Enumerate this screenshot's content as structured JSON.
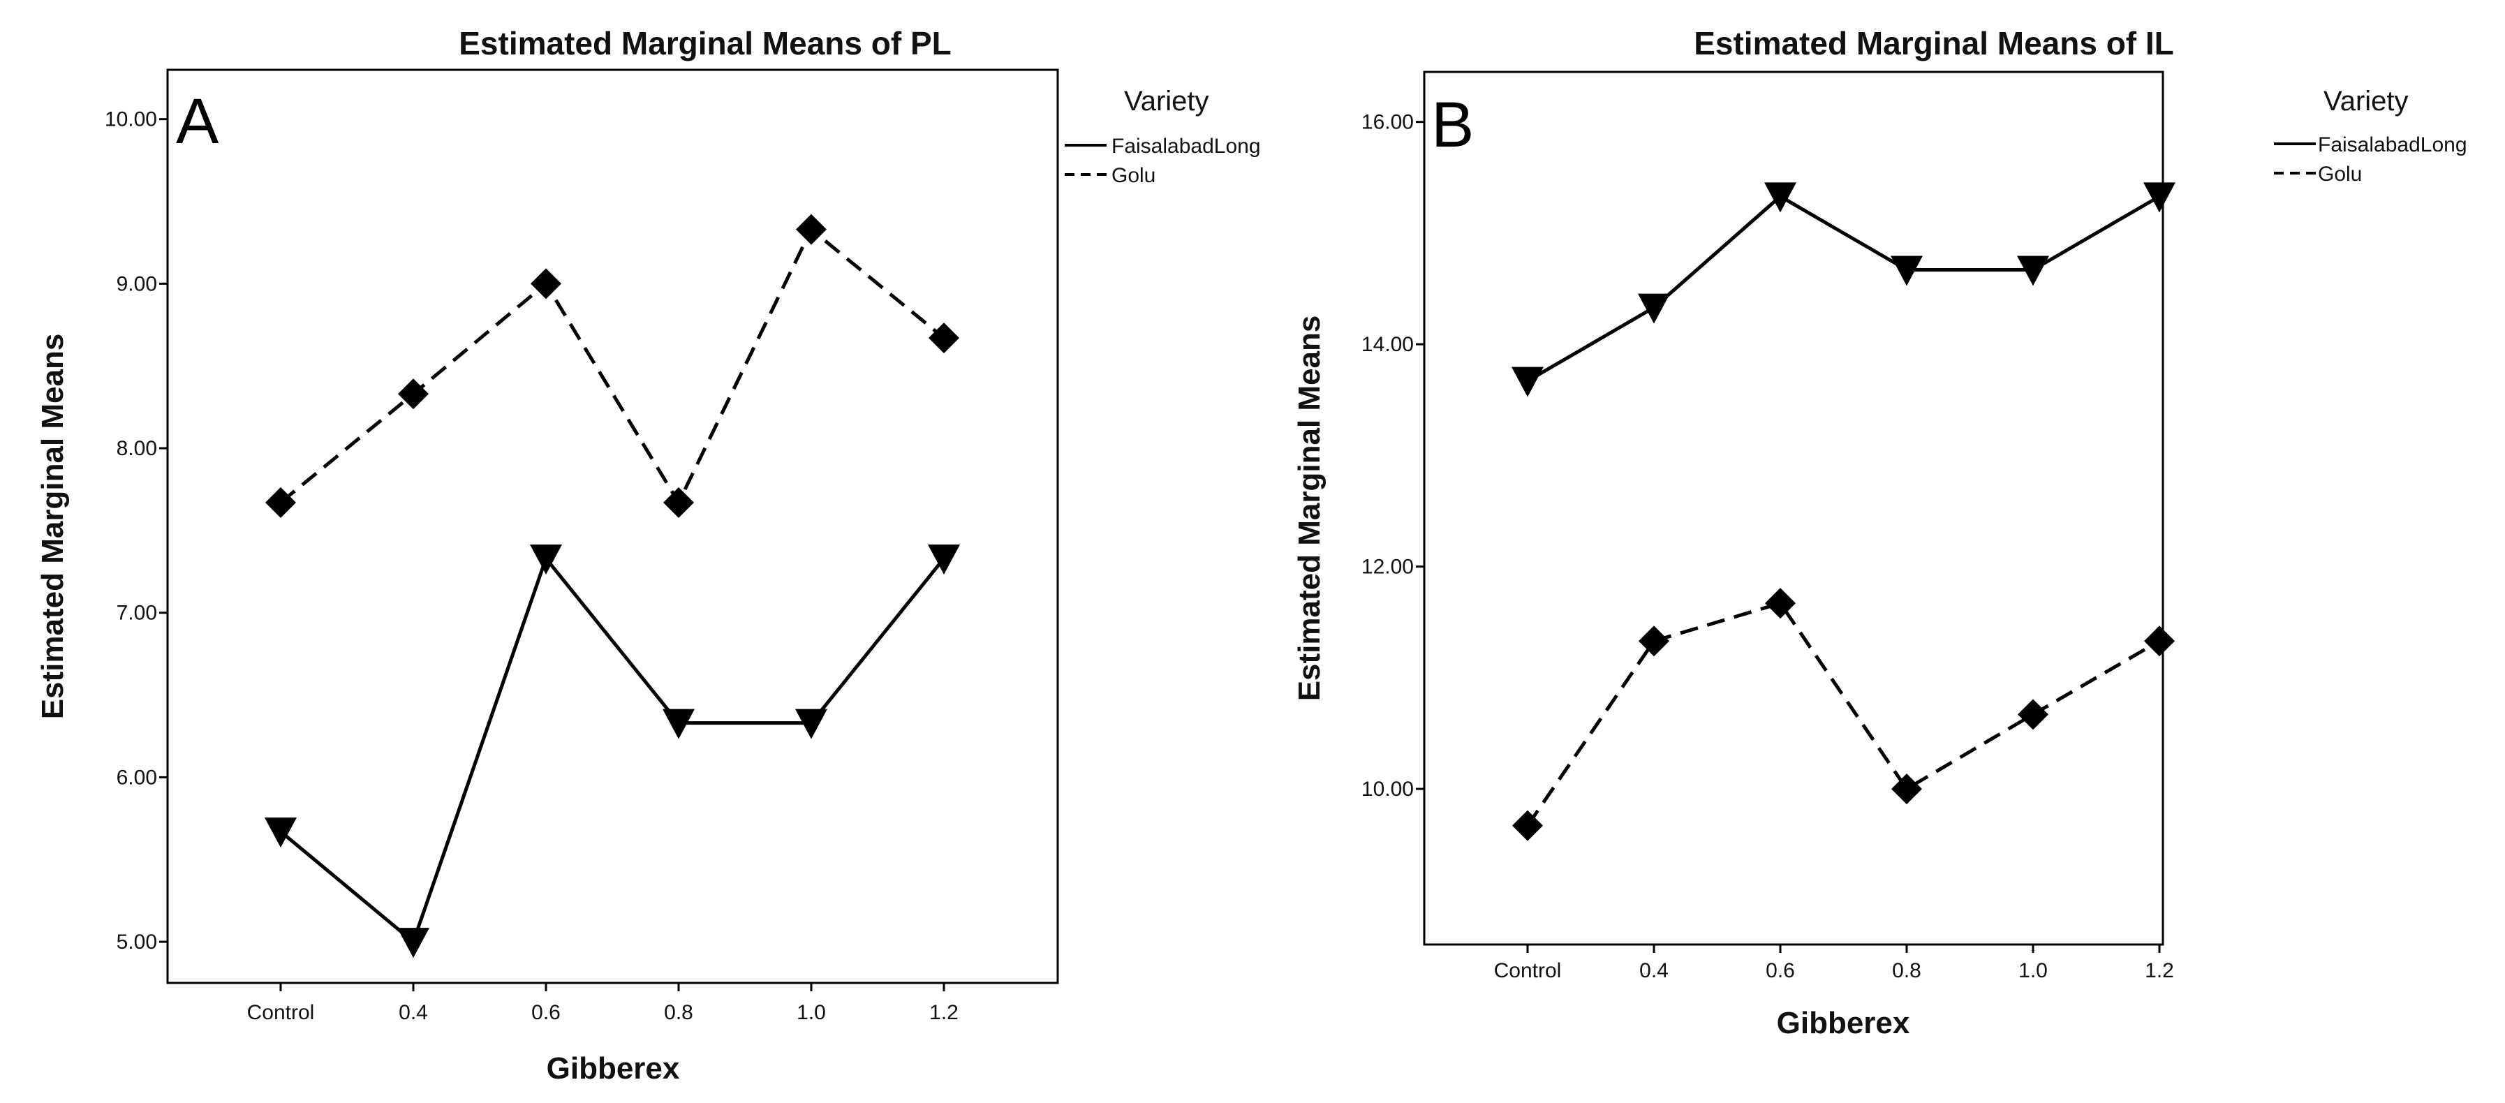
{
  "chart_data": [
    {
      "type": "line",
      "panel_letter": "A",
      "title": "Estimated Marginal Means of PL",
      "xlabel": "Gibberex",
      "ylabel": "Estimated Marginal Means",
      "categories": [
        "Control",
        "0.4",
        "0.6",
        "0.8",
        "1.0",
        "1.2"
      ],
      "ylim": [
        4.75,
        10.3
      ],
      "yticks": [
        "5.00",
        "6.00",
        "7.00",
        "8.00",
        "9.00",
        "10.00"
      ],
      "ytick_values": [
        5,
        6,
        7,
        8,
        9,
        10
      ],
      "legend_title": "Variety",
      "series": [
        {
          "name": "FaisalabadLong",
          "style": "solid",
          "marker": "triangle-down",
          "values": [
            5.67,
            5.0,
            7.33,
            6.33,
            6.33,
            7.33
          ]
        },
        {
          "name": "Golu",
          "style": "dashed",
          "marker": "diamond",
          "values": [
            7.67,
            8.33,
            9.0,
            7.67,
            9.33,
            8.67
          ]
        }
      ]
    },
    {
      "type": "line",
      "panel_letter": "B",
      "title": "Estimated Marginal Means of IL",
      "xlabel": "Gibberex",
      "ylabel": "Estimated Marginal Means",
      "categories": [
        "Control",
        "0.4",
        "0.6",
        "0.8",
        "1.0",
        "1.2"
      ],
      "ylim": [
        8.6,
        16.45
      ],
      "yticks": [
        "10.00",
        "12.00",
        "14.00",
        "16.00"
      ],
      "ytick_values": [
        10,
        12,
        14,
        16
      ],
      "legend_title": "Variety",
      "series": [
        {
          "name": "FaisalabadLong",
          "style": "solid",
          "marker": "triangle-down",
          "values": [
            13.67,
            14.33,
            15.33,
            14.67,
            14.67,
            15.33
          ]
        },
        {
          "name": "Golu",
          "style": "dashed",
          "marker": "diamond",
          "values": [
            9.67,
            11.33,
            11.67,
            10.0,
            10.67,
            11.33
          ]
        }
      ]
    }
  ]
}
